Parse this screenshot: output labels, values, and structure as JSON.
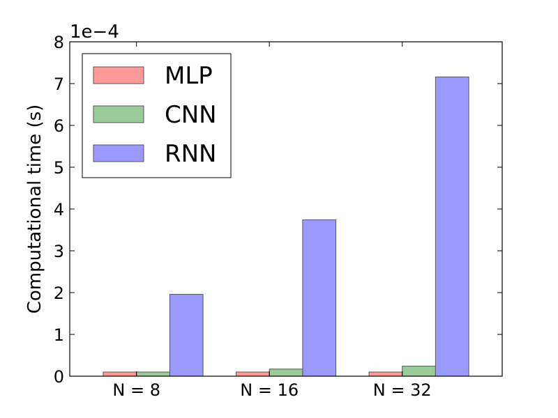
{
  "chart_data": {
    "type": "bar",
    "title": "",
    "xlabel": "",
    "ylabel": "Computational time (s)",
    "y_offset_label": "1e−4",
    "y_scale": 0.0001,
    "ylim": [
      0,
      8
    ],
    "yticks": [
      "0",
      "1",
      "2",
      "3",
      "4",
      "5",
      "6",
      "7",
      "8"
    ],
    "categories": [
      "N = 8",
      "N = 16",
      "N = 32"
    ],
    "series": [
      {
        "name": "MLP",
        "color": "#ff9999",
        "values": [
          0.1,
          0.1,
          0.1
        ]
      },
      {
        "name": "CNN",
        "color": "#99cc99",
        "values": [
          0.1,
          0.17,
          0.24
        ]
      },
      {
        "name": "RNN",
        "color": "#9999ff",
        "values": [
          1.96,
          3.74,
          7.16
        ]
      }
    ],
    "grid": false,
    "legend_position": "top-left"
  }
}
